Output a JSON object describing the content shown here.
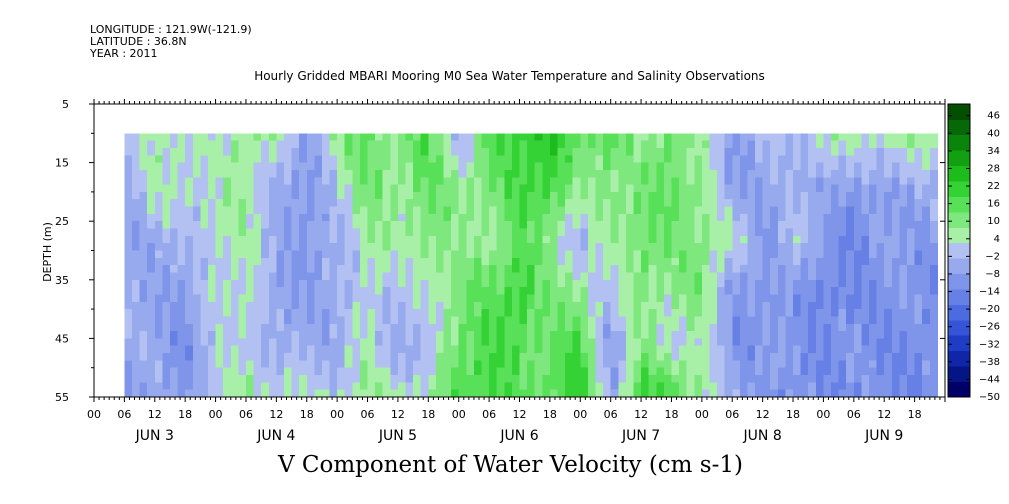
{
  "header": {
    "longitude": "LONGITUDE : 121.9W(-121.9)",
    "latitude": "LATITUDE : 36.8N",
    "year": "YEAR : 2011"
  },
  "chart_data": {
    "type": "heatmap",
    "title": "Hourly Gridded MBARI Mooring M0 Sea Water Temperature and Salinity Observations",
    "xlabel": "V Component of Water Velocity (cm s-1)",
    "ylabel": "DEPTH (m)",
    "ylim": [
      5,
      55
    ],
    "y_inverted": true,
    "y_ticks": [
      5,
      15,
      25,
      35,
      45,
      55
    ],
    "y_data_range": [
      10,
      55
    ],
    "x_days": [
      "JUN 3",
      "JUN 4",
      "JUN 5",
      "JUN 6",
      "JUN 7",
      "JUN 8",
      "JUN 9"
    ],
    "x_hour_labels": [
      "00",
      "06",
      "12",
      "18"
    ],
    "x_data_start_hour": 6,
    "x_data_end_hour": 166,
    "colorbar": {
      "ticks": [
        46,
        40,
        34,
        28,
        22,
        16,
        10,
        4,
        -2,
        -8,
        -14,
        -20,
        -26,
        -32,
        -38,
        -44,
        -50
      ],
      "min": -50,
      "max": 50,
      "colors": [
        "#000066",
        "#061585",
        "#0f26a8",
        "#1f3dc4",
        "#3654d6",
        "#4d6be0",
        "#6680e6",
        "#7f95ea",
        "#98aaee",
        "#b3c0f2",
        "#a8f0a8",
        "#7ee87e",
        "#58e058",
        "#34d234",
        "#1cbc1c",
        "#12a012",
        "#0b840b",
        "#066806",
        "#034e03"
      ]
    },
    "profiles": [
      {
        "hour": 6,
        "v": [
          -3,
          -4,
          -5,
          -6,
          -6,
          -7
        ]
      },
      {
        "hour": 12,
        "v": [
          6,
          3,
          -4,
          -5,
          -7,
          -6
        ]
      },
      {
        "hour": 18,
        "v": [
          5,
          4,
          -3,
          -8,
          -10,
          -9
        ]
      },
      {
        "hour": 24,
        "v": [
          2,
          3,
          4,
          3,
          -2,
          2
        ]
      },
      {
        "hour": 30,
        "v": [
          10,
          6,
          5,
          4,
          4,
          8
        ]
      },
      {
        "hour": 36,
        "v": [
          4,
          -4,
          -3,
          -8,
          -6,
          4
        ]
      },
      {
        "hour": 42,
        "v": [
          -6,
          -12,
          -10,
          -8,
          -4,
          3
        ]
      },
      {
        "hour": 48,
        "v": [
          8,
          2,
          -4,
          -6,
          -5,
          2
        ]
      },
      {
        "hour": 54,
        "v": [
          14,
          12,
          6,
          4,
          4,
          6
        ]
      },
      {
        "hour": 60,
        "v": [
          10,
          8,
          4,
          -2,
          -4,
          4
        ]
      },
      {
        "hour": 66,
        "v": [
          16,
          14,
          10,
          4,
          -4,
          6
        ]
      },
      {
        "hour": 72,
        "v": [
          -4,
          8,
          6,
          12,
          14,
          16
        ]
      },
      {
        "hour": 78,
        "v": [
          16,
          10,
          8,
          14,
          18,
          20
        ]
      },
      {
        "hour": 84,
        "v": [
          22,
          18,
          14,
          22,
          16,
          12
        ]
      },
      {
        "hour": 90,
        "v": [
          24,
          20,
          10,
          8,
          12,
          16
        ]
      },
      {
        "hour": 96,
        "v": [
          12,
          6,
          -4,
          10,
          18,
          22
        ]
      },
      {
        "hour": 102,
        "v": [
          16,
          12,
          6,
          -4,
          -8,
          -6
        ]
      },
      {
        "hour": 108,
        "v": [
          4,
          10,
          14,
          12,
          8,
          20
        ]
      },
      {
        "hour": 114,
        "v": [
          14,
          16,
          10,
          6,
          4,
          18
        ]
      },
      {
        "hour": 120,
        "v": [
          4,
          8,
          12,
          10,
          4,
          8
        ]
      },
      {
        "hour": 126,
        "v": [
          -6,
          -10,
          4,
          -8,
          -10,
          -6
        ]
      },
      {
        "hour": 132,
        "v": [
          -2,
          -6,
          -10,
          -12,
          -8,
          -8
        ]
      },
      {
        "hour": 138,
        "v": [
          -4,
          -6,
          2,
          -8,
          -10,
          -12
        ]
      },
      {
        "hour": 144,
        "v": [
          6,
          -4,
          -10,
          -14,
          -12,
          -10
        ]
      },
      {
        "hour": 150,
        "v": [
          4,
          -10,
          -12,
          -14,
          -10,
          -12
        ]
      },
      {
        "hour": 156,
        "v": [
          6,
          -6,
          -8,
          -10,
          -12,
          -10
        ]
      },
      {
        "hour": 162,
        "v": [
          8,
          -4,
          -8,
          -10,
          -12,
          -14
        ]
      },
      {
        "hour": 166,
        "v": [
          6,
          -4,
          -8,
          -10,
          -12,
          -12
        ]
      }
    ],
    "profile_depths": [
      10,
      19,
      28,
      37,
      46,
      55
    ]
  }
}
